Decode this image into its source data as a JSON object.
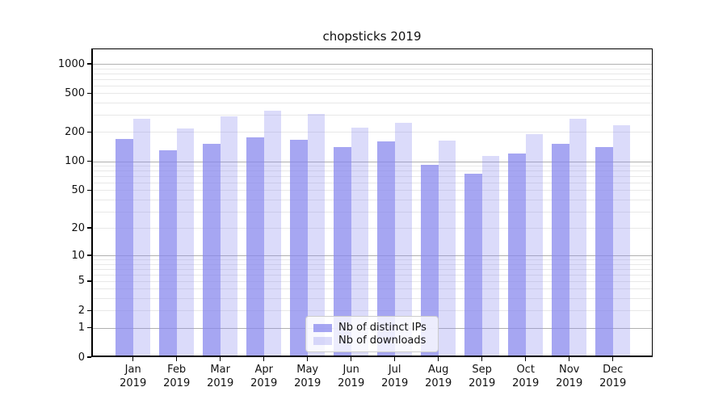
{
  "title": "chopsticks 2019",
  "chart_data": {
    "type": "bar",
    "title": "chopsticks 2019",
    "xlabel": "",
    "ylabel": "",
    "yscale": "log1p",
    "ylim": [
      0,
      1440
    ],
    "yticks": [
      0,
      1,
      2,
      5,
      10,
      20,
      50,
      100,
      200,
      500,
      1000
    ],
    "grid": true,
    "legend_position": "lower center",
    "bar_color": "#8888ee",
    "categories": [
      "Jan 2019",
      "Feb 2019",
      "Mar 2019",
      "Apr 2019",
      "May 2019",
      "Jun 2019",
      "Jul 2019",
      "Aug 2019",
      "Sep 2019",
      "Oct 2019",
      "Nov 2019",
      "Dec 2019"
    ],
    "series": [
      {
        "name": "Nb of distinct IPs",
        "alpha": 0.75,
        "values": [
          170,
          129,
          150,
          177,
          167,
          140,
          160,
          92,
          74,
          121,
          152,
          139
        ]
      },
      {
        "name": "Nb of downloads",
        "alpha": 0.3,
        "values": [
          275,
          218,
          290,
          334,
          309,
          224,
          251,
          165,
          113,
          191,
          276,
          236
        ]
      }
    ]
  }
}
